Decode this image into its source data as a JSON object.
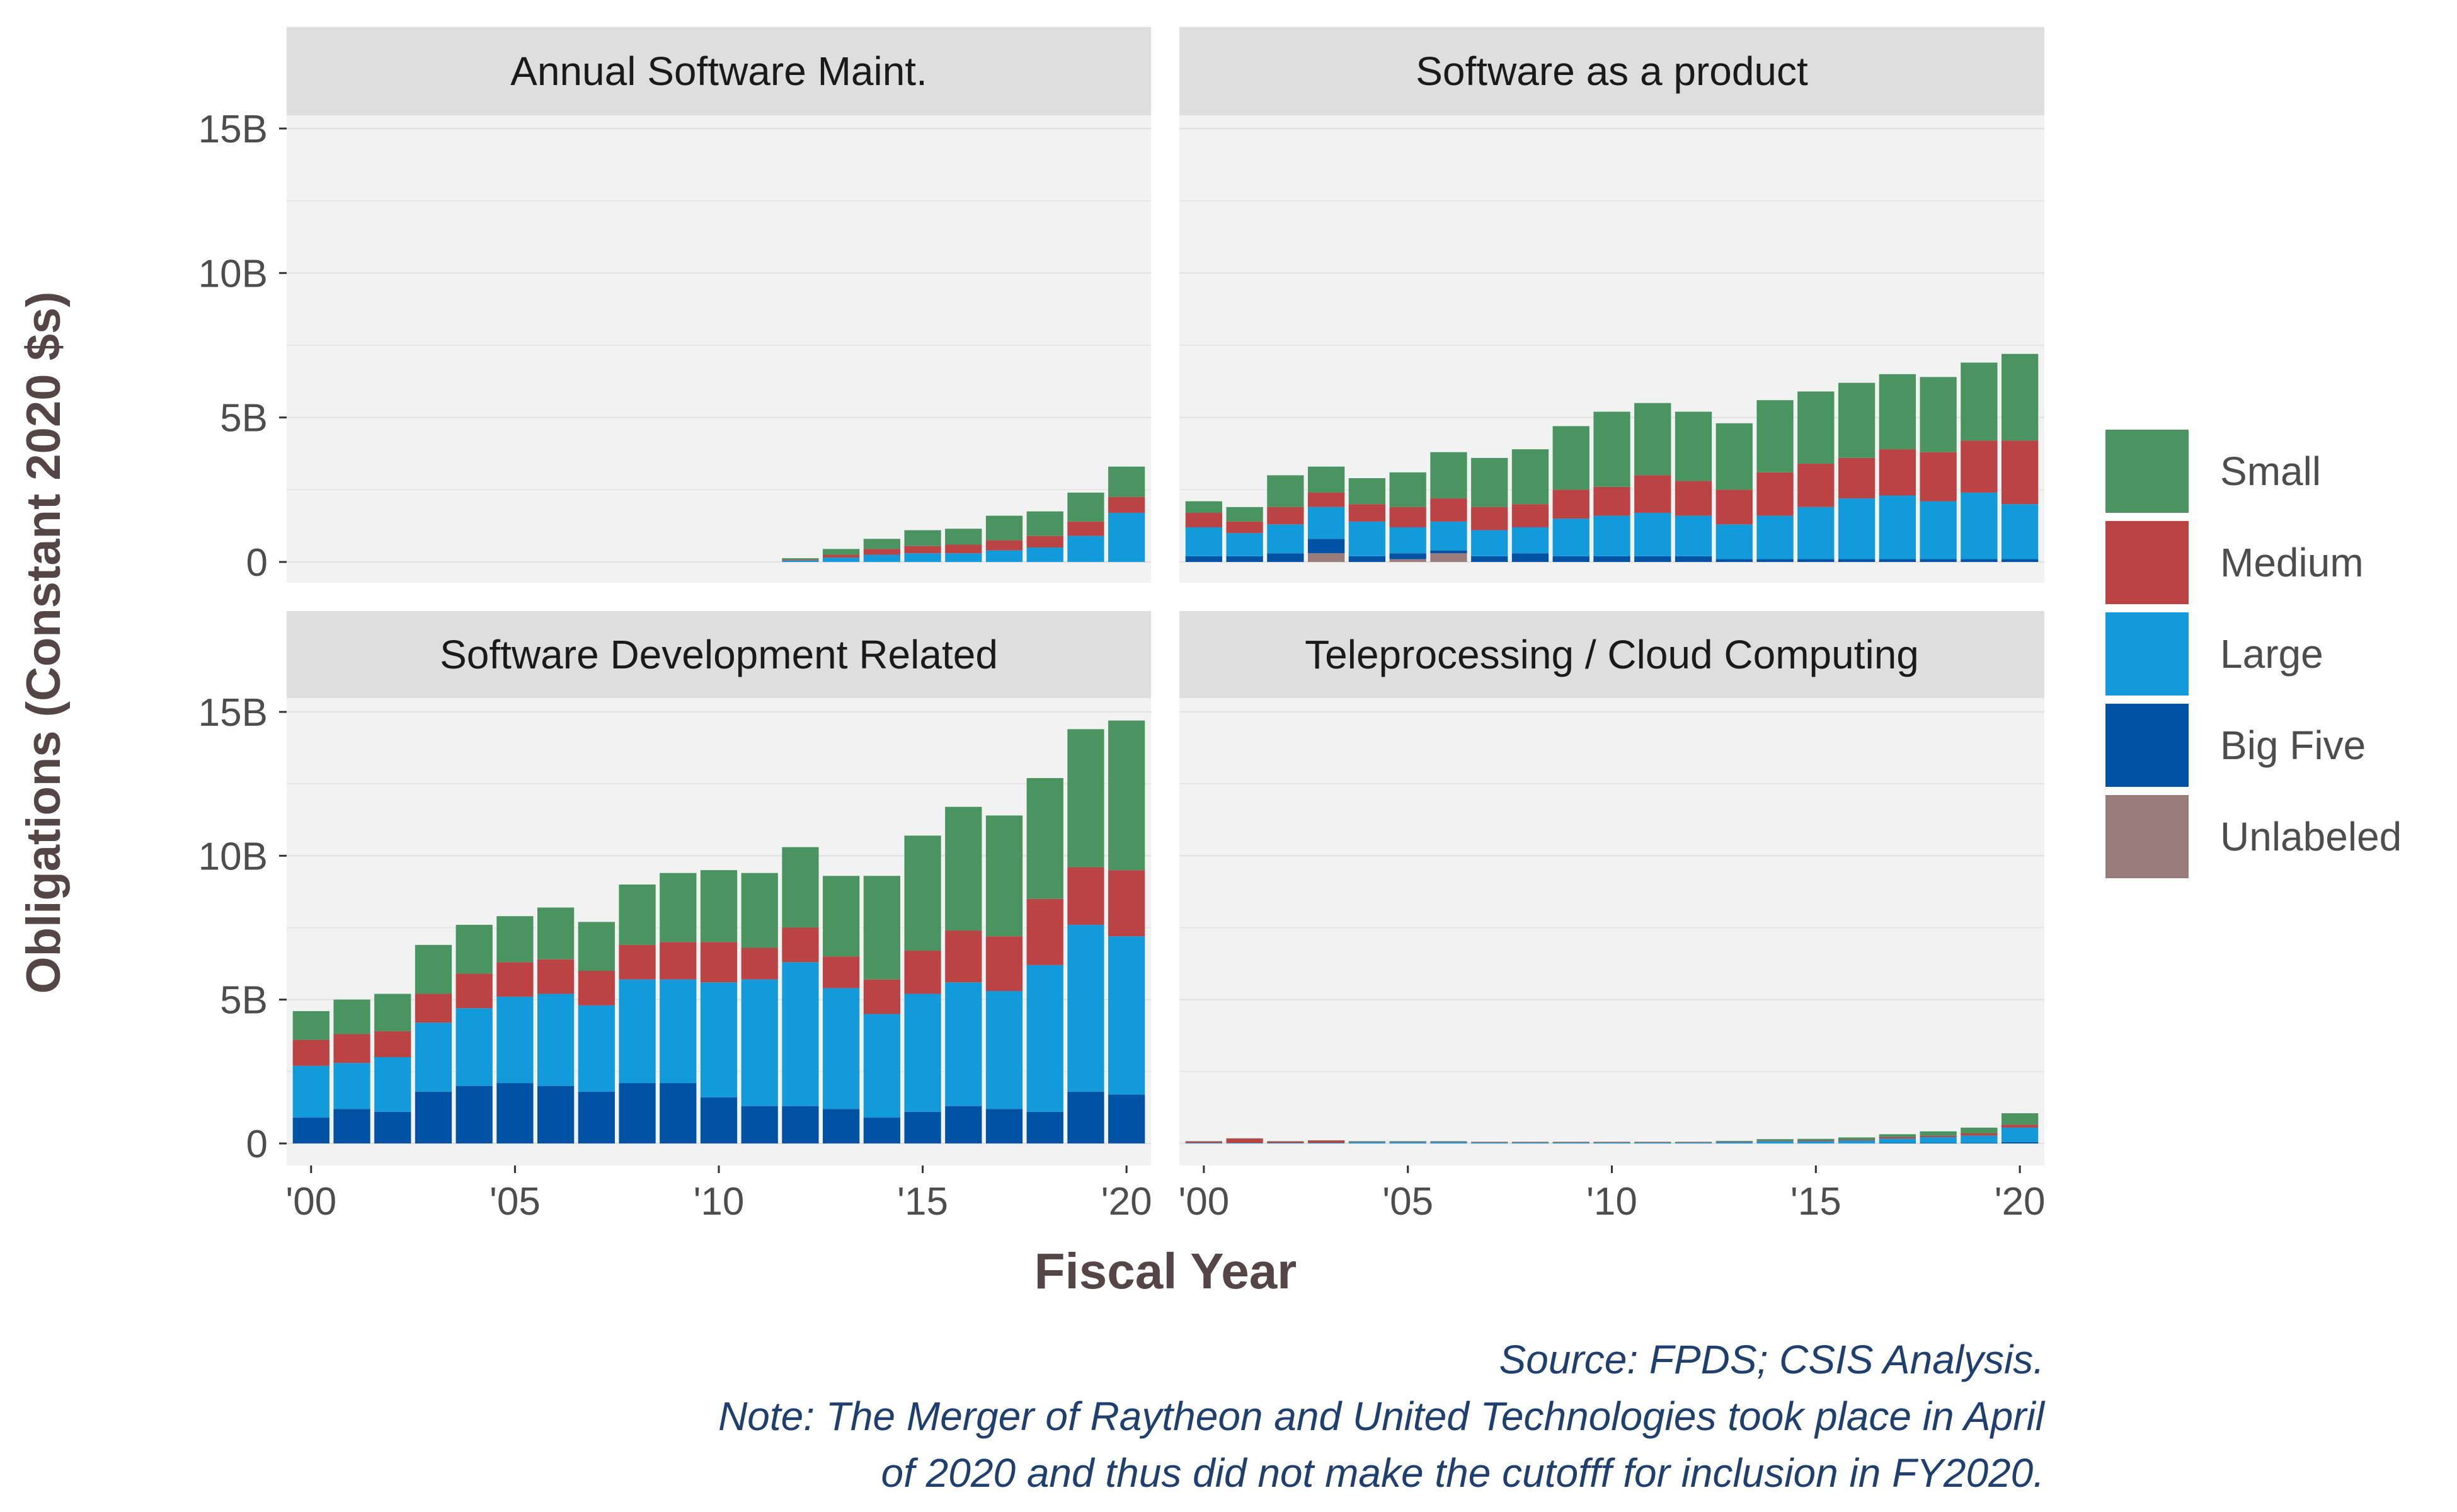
{
  "chart_data": {
    "type": "bar",
    "stacked": true,
    "faceted": true,
    "ylabel": "Obligations (Constant 2020 $s)",
    "xlabel": "Fiscal Year",
    "ylim": [
      0,
      15000000000
    ],
    "y_ticks": [
      0,
      5000000000,
      10000000000,
      15000000000
    ],
    "y_tick_labels": [
      "0",
      "5B",
      "10B",
      "15B"
    ],
    "x_ticks": [
      2000,
      2005,
      2010,
      2015,
      2020
    ],
    "x_tick_labels": [
      "'00",
      "'05",
      "'10",
      "'15",
      "'20"
    ],
    "legend_position": "right",
    "legend": [
      {
        "name": "Small",
        "color": "#4A9461"
      },
      {
        "name": "Medium",
        "color": "#BB4344"
      },
      {
        "name": "Large",
        "color": "#129ADA"
      },
      {
        "name": "Big Five",
        "color": "#0052A5"
      },
      {
        "name": "Unlabeled",
        "color": "#9A7B7B"
      }
    ],
    "stack_order": [
      "Unlabeled",
      "Big Five",
      "Large",
      "Medium",
      "Small"
    ],
    "panels": [
      {
        "title": "Annual Software Maint.",
        "x": [
          2012,
          2013,
          2014,
          2015,
          2016,
          2017,
          2018,
          2019,
          2020
        ],
        "series": [
          {
            "name": "Unlabeled",
            "values": [
              0,
              0,
              0,
              0,
              0,
              0,
              0,
              0,
              0
            ]
          },
          {
            "name": "Big Five",
            "values": [
              0,
              0,
              0,
              0,
              0,
              0,
              0,
              0,
              0
            ]
          },
          {
            "name": "Large",
            "values": [
              0.05,
              0.15,
              0.25,
              0.3,
              0.3,
              0.4,
              0.5,
              0.9,
              1.7
            ]
          },
          {
            "name": "Medium",
            "values": [
              0.03,
              0.1,
              0.2,
              0.25,
              0.3,
              0.35,
              0.4,
              0.5,
              0.55
            ]
          },
          {
            "name": "Small",
            "values": [
              0.05,
              0.2,
              0.35,
              0.55,
              0.55,
              0.85,
              0.85,
              1.0,
              1.05
            ]
          }
        ]
      },
      {
        "title": "Software as a product",
        "x": [
          2000,
          2001,
          2002,
          2003,
          2004,
          2005,
          2006,
          2007,
          2008,
          2009,
          2010,
          2011,
          2012,
          2013,
          2014,
          2015,
          2016,
          2017,
          2018,
          2019,
          2020
        ],
        "series": [
          {
            "name": "Unlabeled",
            "values": [
              0,
              0,
              0,
              0.3,
              0,
              0.1,
              0.3,
              0,
              0,
              0,
              0,
              0,
              0,
              0,
              0,
              0,
              0,
              0,
              0,
              0,
              0
            ]
          },
          {
            "name": "Big Five",
            "values": [
              0.2,
              0.2,
              0.3,
              0.5,
              0.2,
              0.2,
              0.1,
              0.2,
              0.3,
              0.2,
              0.2,
              0.2,
              0.2,
              0.1,
              0.1,
              0.1,
              0.1,
              0.1,
              0.1,
              0.1,
              0.1
            ]
          },
          {
            "name": "Large",
            "values": [
              1.0,
              0.8,
              1.0,
              1.1,
              1.2,
              0.9,
              1.0,
              0.9,
              0.9,
              1.3,
              1.4,
              1.5,
              1.4,
              1.2,
              1.5,
              1.8,
              2.1,
              2.2,
              2.0,
              2.3,
              1.9
            ]
          },
          {
            "name": "Medium",
            "values": [
              0.5,
              0.4,
              0.6,
              0.5,
              0.6,
              0.7,
              0.8,
              0.8,
              0.8,
              1.0,
              1.0,
              1.3,
              1.2,
              1.2,
              1.5,
              1.5,
              1.4,
              1.6,
              1.7,
              1.8,
              2.2
            ]
          },
          {
            "name": "Small",
            "values": [
              0.4,
              0.5,
              1.1,
              0.9,
              0.9,
              1.2,
              1.6,
              1.7,
              1.9,
              2.2,
              2.6,
              2.5,
              2.4,
              2.3,
              2.5,
              2.5,
              2.6,
              2.6,
              2.6,
              2.7,
              3.0
            ]
          }
        ]
      },
      {
        "title": "Software Development Related",
        "x": [
          2000,
          2001,
          2002,
          2003,
          2004,
          2005,
          2006,
          2007,
          2008,
          2009,
          2010,
          2011,
          2012,
          2013,
          2014,
          2015,
          2016,
          2017,
          2018,
          2019,
          2020
        ],
        "series": [
          {
            "name": "Unlabeled",
            "values": [
              0,
              0,
              0,
              0,
              0,
              0,
              0,
              0,
              0,
              0,
              0,
              0,
              0,
              0,
              0,
              0,
              0,
              0,
              0,
              0,
              0
            ]
          },
          {
            "name": "Big Five",
            "values": [
              0.9,
              1.2,
              1.1,
              1.8,
              2.0,
              2.1,
              2.0,
              1.8,
              2.1,
              2.1,
              1.6,
              1.3,
              1.3,
              1.2,
              0.9,
              1.1,
              1.3,
              1.2,
              1.1,
              1.8,
              1.7
            ]
          },
          {
            "name": "Large",
            "values": [
              1.8,
              1.6,
              1.9,
              2.4,
              2.7,
              3.0,
              3.2,
              3.0,
              3.6,
              3.6,
              4.0,
              4.4,
              5.0,
              4.2,
              3.6,
              4.1,
              4.3,
              4.1,
              5.1,
              5.8,
              5.5
            ]
          },
          {
            "name": "Medium",
            "values": [
              0.9,
              1.0,
              0.9,
              1.0,
              1.2,
              1.2,
              1.2,
              1.2,
              1.2,
              1.3,
              1.4,
              1.1,
              1.2,
              1.1,
              1.2,
              1.5,
              1.8,
              1.9,
              2.3,
              2.0,
              2.3
            ]
          },
          {
            "name": "Small",
            "values": [
              1.0,
              1.2,
              1.3,
              1.7,
              1.7,
              1.6,
              1.8,
              1.7,
              2.1,
              2.4,
              2.5,
              2.6,
              2.8,
              2.8,
              3.6,
              4.0,
              4.3,
              4.2,
              4.2,
              4.8,
              5.2
            ]
          }
        ]
      },
      {
        "title": "Teleprocessing / Cloud Computing",
        "x": [
          2000,
          2001,
          2002,
          2003,
          2004,
          2005,
          2006,
          2007,
          2008,
          2009,
          2010,
          2011,
          2012,
          2013,
          2014,
          2015,
          2016,
          2017,
          2018,
          2019,
          2020
        ],
        "series": [
          {
            "name": "Unlabeled",
            "values": [
              0,
              0,
              0,
              0,
              0,
              0,
              0,
              0,
              0,
              0,
              0,
              0,
              0,
              0,
              0,
              0,
              0,
              0,
              0,
              0,
              0
            ]
          },
          {
            "name": "Big Five",
            "values": [
              0,
              0,
              0,
              0,
              0,
              0,
              0,
              0,
              0,
              0,
              0,
              0,
              0,
              0,
              0,
              0,
              0,
              0.02,
              0.02,
              0.02,
              0.05
            ]
          },
          {
            "name": "Large",
            "values": [
              0.02,
              0.02,
              0.02,
              0.02,
              0.05,
              0.05,
              0.05,
              0.03,
              0.03,
              0.03,
              0.03,
              0.03,
              0.03,
              0.05,
              0.08,
              0.08,
              0.1,
              0.15,
              0.2,
              0.25,
              0.5
            ]
          },
          {
            "name": "Medium",
            "values": [
              0.05,
              0.15,
              0.05,
              0.08,
              0.02,
              0.02,
              0.02,
              0.02,
              0.02,
              0.02,
              0.02,
              0.02,
              0.02,
              0.02,
              0.02,
              0.03,
              0.03,
              0.05,
              0.05,
              0.08,
              0.1
            ]
          },
          {
            "name": "Small",
            "values": [
              0.01,
              0.01,
              0.01,
              0.01,
              0.01,
              0.01,
              0.01,
              0.01,
              0.01,
              0.01,
              0.01,
              0.01,
              0.01,
              0.02,
              0.05,
              0.05,
              0.08,
              0.1,
              0.15,
              0.2,
              0.4
            ]
          }
        ]
      }
    ],
    "value_units": "billions of constant 2020 dollars (read from axis)"
  },
  "caption": {
    "source": "Source: FPDS; CSIS Analysis.",
    "note_line1": "Note: The Merger of Raytheon and United Technologies took place in April",
    "note_line2": "of 2020 and thus did not make the cutofff for inclusion in FY2020."
  },
  "colors": {
    "panel_bg": "#F2F2F2",
    "strip_bg": "#DEDEDE",
    "grid": "#E2E2E2",
    "axis_text": "#4D4D4D",
    "title_text": "#544547",
    "caption_text": "#1F3F6F"
  }
}
